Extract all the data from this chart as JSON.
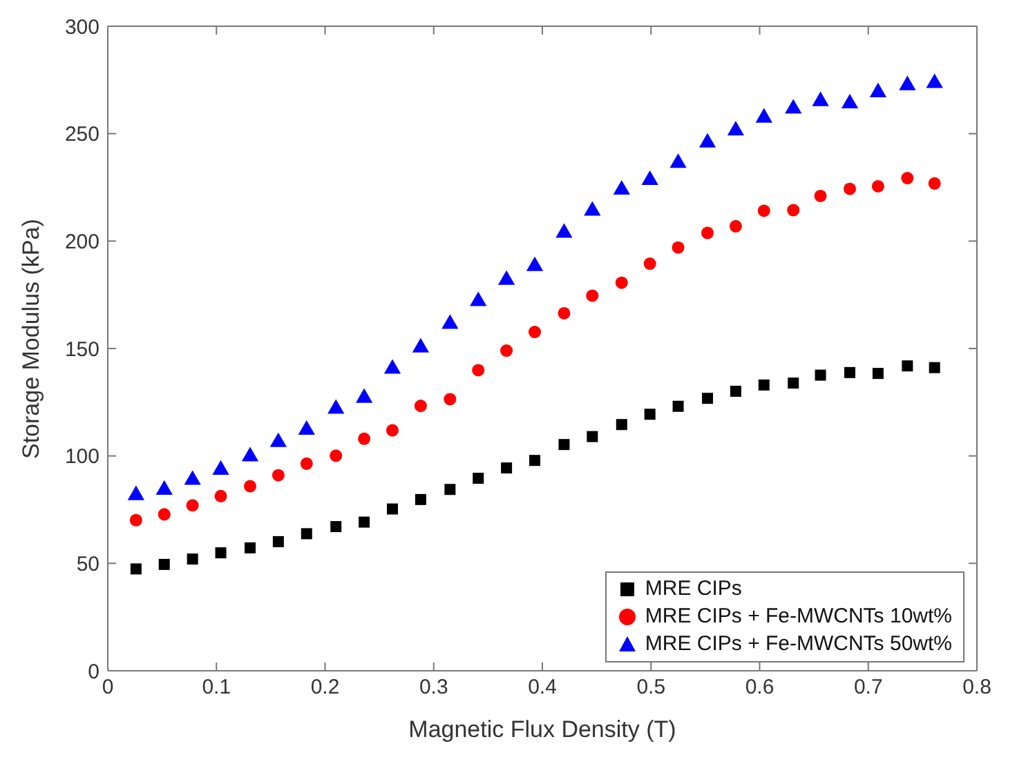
{
  "chart_data": {
    "type": "scatter",
    "xlabel": "Magnetic Flux Density (T)",
    "ylabel": "Storage Modulus (kPa)",
    "x": [
      0.026,
      0.052,
      0.078,
      0.104,
      0.131,
      0.157,
      0.183,
      0.21,
      0.236,
      0.262,
      0.288,
      0.315,
      0.341,
      0.367,
      0.393,
      0.42,
      0.446,
      0.473,
      0.499,
      0.525,
      0.552,
      0.578,
      0.604,
      0.631,
      0.656,
      0.683,
      0.709,
      0.736,
      0.761
    ],
    "series": [
      {
        "name": "MRE CIPs",
        "color": "#000000",
        "marker": "square",
        "values": [
          47.4,
          49.5,
          52,
          54.9,
          57.2,
          60.1,
          63.8,
          67.1,
          69.2,
          75.3,
          79.7,
          84.4,
          89.6,
          94.4,
          97.9,
          105.3,
          109,
          114.6,
          119.4,
          123.1,
          126.8,
          130.1,
          133,
          133.9,
          137.6,
          138.8,
          138.4,
          141.9,
          141.1
        ]
      },
      {
        "name": "MRE CIPs + Fe-MWCNTs 10wt%",
        "color": "#ff0000",
        "marker": "circle",
        "values": [
          70.1,
          72.8,
          77,
          81.3,
          85.9,
          91,
          96.4,
          100.1,
          108,
          111.9,
          123.3,
          126.4,
          139.9,
          149,
          157.7,
          166.4,
          174.6,
          180.6,
          189.5,
          197,
          203.8,
          206.9,
          214.1,
          214.4,
          221,
          224.3,
          225.5,
          229.3,
          226.8
        ]
      },
      {
        "name": "MRE CIPs + Fe-MWCNTs 50wt%",
        "color": "#0000ff",
        "marker": "triangle",
        "values": [
          81.7,
          84.2,
          88.8,
          93.5,
          99.7,
          106.4,
          112.1,
          121.9,
          127,
          140.5,
          150.4,
          161.4,
          172,
          181.9,
          188.3,
          203.8,
          214.1,
          223.9,
          228.4,
          236.3,
          245.8,
          251.4,
          257.4,
          261.6,
          265.1,
          264,
          269.2,
          272.5,
          273.5
        ]
      }
    ],
    "xlim": [
      0,
      0.8
    ],
    "xticks": [
      0,
      0.1,
      0.2,
      0.3,
      0.4,
      0.5,
      0.6,
      0.7,
      0.8
    ],
    "ylim": [
      0,
      300
    ],
    "yticks": [
      0,
      50,
      100,
      150,
      200,
      250,
      300
    ],
    "legend": "bottom right"
  }
}
